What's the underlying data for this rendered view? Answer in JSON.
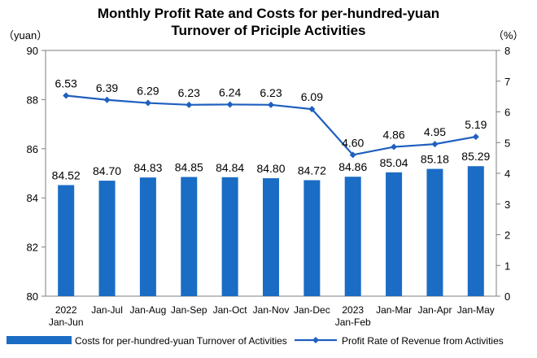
{
  "chart_data": {
    "type": "bar+line",
    "title_lines": [
      "Monthly Profit Rate and Costs for per-hundred-yuan",
      "Turnover of Priciple Activities"
    ],
    "left_unit": "（yuan）",
    "right_unit": "（%）",
    "categories": [
      [
        "2022",
        "Jan-Jun"
      ],
      [
        "Jan-Jul"
      ],
      [
        "Jan-Aug"
      ],
      [
        "Jan-Sep"
      ],
      [
        "Jan-Oct"
      ],
      [
        "Jan-Nov"
      ],
      [
        "Jan-Dec"
      ],
      [
        "2023",
        "Jan-Feb"
      ],
      [
        "Jan-Mar"
      ],
      [
        "Jan-Apr"
      ],
      [
        "Jan-May"
      ]
    ],
    "left_axis": {
      "min": 80,
      "max": 90,
      "step": 2
    },
    "right_axis": {
      "min": 0,
      "max": 8,
      "step": 1
    },
    "series": [
      {
        "name": "Costs for per-hundred-yuan Turnover of Activities",
        "type": "bar",
        "axis": "left",
        "color": "#1a6cc4",
        "values": [
          84.52,
          84.7,
          84.83,
          84.85,
          84.84,
          84.8,
          84.72,
          84.86,
          85.04,
          85.18,
          85.29
        ],
        "labels": [
          "84.52",
          "84.70",
          "84.83",
          "84.85",
          "84.84",
          "84.80",
          "84.72",
          "84.86",
          "85.04",
          "85.18",
          "85.29"
        ]
      },
      {
        "name": "Profit Rate of Revenue from Activities",
        "type": "line",
        "axis": "right",
        "color": "#1f5fbf",
        "values": [
          6.53,
          6.39,
          6.29,
          6.23,
          6.24,
          6.23,
          6.09,
          4.6,
          4.86,
          4.95,
          5.19
        ],
        "labels": [
          "6.53",
          "6.39",
          "6.29",
          "6.23",
          "6.24",
          "6.23",
          "6.09",
          "4.60",
          "4.86",
          "4.95",
          "5.19"
        ]
      }
    ],
    "legend_position": "bottom",
    "grid": false
  }
}
